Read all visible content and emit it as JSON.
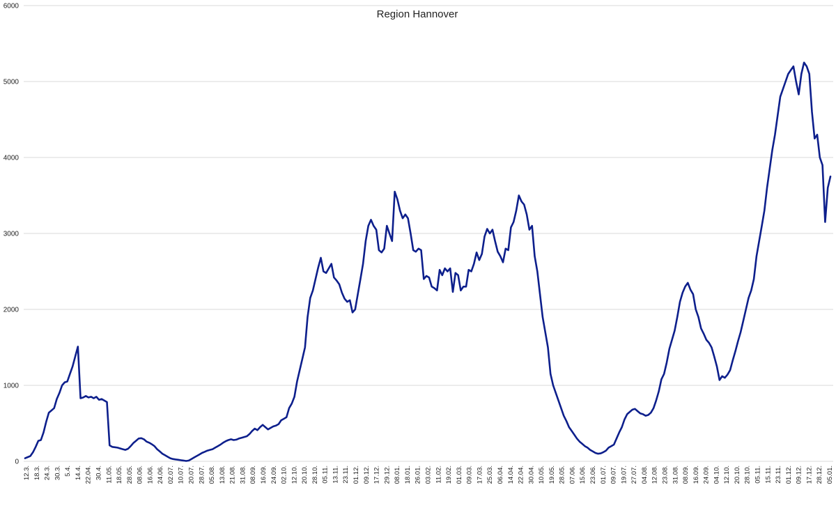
{
  "chart_data": {
    "type": "line",
    "title": "Region Hannover",
    "xlabel": "",
    "ylabel": "",
    "ylim": [
      0,
      6000
    ],
    "yticks": [
      0,
      1000,
      2000,
      3000,
      4000,
      5000,
      6000
    ],
    "grid": true,
    "colors": {
      "series": "#0d1f8c",
      "grid": "#d9d9d9",
      "text": "#222222"
    },
    "xtick_labels": [
      "12.3.",
      "18.3.",
      "24.3.",
      "30.3.",
      "5.4.",
      "14.4.",
      "22.04.",
      "30.4.",
      "11.05.",
      "18.05.",
      "28.05.",
      "08.06.",
      "16.06.",
      "24.06.",
      "02.07.",
      "10.07.",
      "20.07.",
      "28.07.",
      "05.08.",
      "13.08.",
      "21.08.",
      "31.08.",
      "08.09.",
      "16.09.",
      "24.09.",
      "02.10.",
      "12.10.",
      "20.10.",
      "28.10.",
      "05.11.",
      "13.11.",
      "23.11.",
      "01.12.",
      "09.12.",
      "17.12.",
      "29.12.",
      "08.01.",
      "18.01.",
      "26.01.",
      "03.02.",
      "11.02.",
      "19.02.",
      "01.03.",
      "09.03.",
      "17.03.",
      "25.03.",
      "06.04.",
      "14.04.",
      "22.04.",
      "30.04.",
      "10.05.",
      "19.05.",
      "28.05.",
      "07.06.",
      "15.06.",
      "23.06.",
      "01.07.",
      "09.07.",
      "19.07.",
      "27.07.",
      "04.08.",
      "12.08.",
      "23.08.",
      "31.08.",
      "08.09.",
      "16.09.",
      "24.09.",
      "04.10.",
      "12.10.",
      "20.10.",
      "28.10.",
      "05.11.",
      "15.11.",
      "23.11.",
      "01.12.",
      "09.12.",
      "17.12.",
      "28.12.",
      "05.01."
    ],
    "series": [
      {
        "values": [
          40,
          55,
          70,
          120,
          190,
          270,
          280,
          380,
          520,
          640,
          670,
          700,
          820,
          900,
          1000,
          1040,
          1050,
          1150,
          1250,
          1380,
          1510,
          830,
          840,
          860,
          840,
          850,
          830,
          850,
          810,
          820,
          800,
          780,
          210,
          190,
          185,
          180,
          170,
          160,
          150,
          165,
          200,
          240,
          270,
          300,
          305,
          290,
          260,
          245,
          225,
          200,
          160,
          130,
          100,
          80,
          60,
          40,
          30,
          25,
          20,
          15,
          10,
          5,
          10,
          30,
          50,
          70,
          90,
          110,
          125,
          140,
          150,
          160,
          180,
          200,
          220,
          245,
          265,
          280,
          290,
          280,
          285,
          300,
          310,
          320,
          330,
          360,
          400,
          430,
          410,
          450,
          480,
          450,
          420,
          440,
          460,
          470,
          490,
          540,
          560,
          580,
          700,
          760,
          850,
          1050,
          1200,
          1350,
          1500,
          1900,
          2150,
          2250,
          2400,
          2550,
          2680,
          2500,
          2480,
          2540,
          2600,
          2420,
          2380,
          2330,
          2220,
          2140,
          2100,
          2120,
          1960,
          2000,
          2200,
          2400,
          2600,
          2900,
          3100,
          3180,
          3100,
          3050,
          2780,
          2750,
          2800,
          3100,
          3000,
          2900,
          3550,
          3450,
          3300,
          3200,
          3250,
          3200,
          3000,
          2780,
          2760,
          2800,
          2780,
          2400,
          2440,
          2420,
          2300,
          2280,
          2250,
          2520,
          2450,
          2540,
          2500,
          2540,
          2230,
          2480,
          2450,
          2250,
          2300,
          2300,
          2520,
          2500,
          2600,
          2750,
          2650,
          2730,
          2960,
          3060,
          3000,
          3050,
          2900,
          2760,
          2700,
          2620,
          2800,
          2780,
          3080,
          3150,
          3300,
          3500,
          3420,
          3380,
          3250,
          3050,
          3100,
          2700,
          2500,
          2200,
          1900,
          1700,
          1500,
          1150,
          1000,
          900,
          800,
          700,
          600,
          530,
          450,
          400,
          350,
          300,
          260,
          230,
          200,
          180,
          150,
          130,
          110,
          100,
          105,
          120,
          140,
          180,
          200,
          220,
          300,
          380,
          450,
          550,
          620,
          650,
          680,
          690,
          660,
          630,
          620,
          600,
          610,
          640,
          700,
          800,
          920,
          1080,
          1150,
          1300,
          1480,
          1600,
          1720,
          1900,
          2100,
          2220,
          2300,
          2350,
          2260,
          2200,
          2000,
          1900,
          1750,
          1680,
          1600,
          1560,
          1500,
          1380,
          1250,
          1070,
          1120,
          1100,
          1140,
          1200,
          1330,
          1450,
          1580,
          1700,
          1850,
          2000,
          2150,
          2250,
          2400,
          2700,
          2900,
          3100,
          3300,
          3600,
          3850,
          4100,
          4300,
          4550,
          4800,
          4900,
          5000,
          5100,
          5150,
          5200,
          5000,
          4830,
          5100,
          5250,
          5200,
          5100,
          4600,
          4250,
          4300,
          4000,
          3900,
          3150,
          3600,
          3750
        ]
      }
    ]
  }
}
